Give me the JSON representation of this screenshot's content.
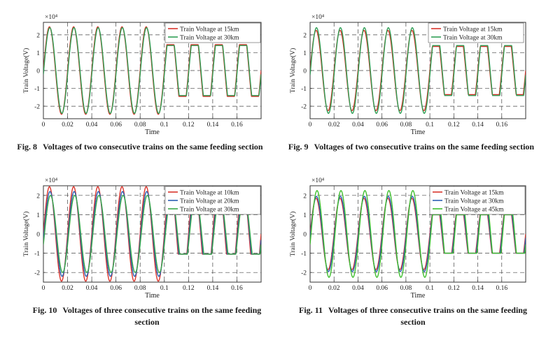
{
  "chart_data": [
    {
      "type": "line",
      "id": "fig8",
      "caption_number": "Fig. 8",
      "caption_text": "Voltages of two consecutive trains on the same feeding section",
      "xlabel": "Time",
      "ylabel": "Train Voltage(V)",
      "exponent_label": "×10⁴",
      "xlim": [
        0,
        0.18
      ],
      "ylim": [
        -2.7,
        2.7
      ],
      "xticks": [
        0,
        0.02,
        0.04,
        0.06,
        0.08,
        0.1,
        0.12,
        0.14,
        0.16
      ],
      "xtick_labels": [
        "0",
        "0.02",
        "0.04",
        "0.06",
        "0.08",
        "0.1",
        "0.12",
        "0.14",
        "0.16"
      ],
      "yticks": [
        -2,
        -1,
        0,
        1,
        2
      ],
      "ytick_labels": [
        "-2",
        "-1",
        "0",
        "1",
        "2"
      ],
      "frequency_hz": 50,
      "clip_start": 0.1,
      "legend_position": "top-right",
      "series": [
        {
          "name": "Train Voltage at 15km",
          "color": "#d9342b",
          "amplitude": 2.45,
          "phase_deg": 0,
          "clip_level": 1.45
        },
        {
          "name": "Train Voltage at 30km",
          "color": "#2f9e55",
          "amplitude": 2.4,
          "phase_deg": -5,
          "clip_level": 1.4
        }
      ]
    },
    {
      "type": "line",
      "id": "fig9",
      "caption_number": "Fig. 9",
      "caption_text": "Voltages of two consecutive trains on the same feeding section",
      "xlabel": "Time",
      "ylabel": "Train Voltage(V)",
      "exponent_label": "×10⁴",
      "xlim": [
        0,
        0.18
      ],
      "ylim": [
        -2.7,
        2.7
      ],
      "xticks": [
        0,
        0.02,
        0.04,
        0.06,
        0.08,
        0.1,
        0.12,
        0.14,
        0.16
      ],
      "xtick_labels": [
        "0",
        "0.02",
        "0.04",
        "0.06",
        "0.08",
        "0.1",
        "0.12",
        "0.14",
        "0.16"
      ],
      "yticks": [
        -2,
        -1,
        0,
        1,
        2
      ],
      "ytick_labels": [
        "-2",
        "-1",
        "0",
        "1",
        "2"
      ],
      "frequency_hz": 50,
      "clip_start": 0.1,
      "legend_position": "top-right",
      "series": [
        {
          "name": "Train Voltage at 15km",
          "color": "#d9342b",
          "amplitude": 2.25,
          "phase_deg": 0,
          "clip_level": 1.35
        },
        {
          "name": "Train Voltage at 30km",
          "color": "#2f9e55",
          "amplitude": 2.4,
          "phase_deg": -6,
          "clip_level": 1.4
        }
      ]
    },
    {
      "type": "line",
      "id": "fig10",
      "caption_number": "Fig. 10",
      "caption_text": "Voltages of three consecutive trains on the same feeding section",
      "xlabel": "Time",
      "ylabel": "Train Voltage(V)",
      "exponent_label": "×10⁴",
      "xlim": [
        0,
        0.18
      ],
      "ylim": [
        -2.5,
        2.5
      ],
      "xticks": [
        0,
        0.02,
        0.04,
        0.06,
        0.08,
        0.1,
        0.12,
        0.14,
        0.16
      ],
      "xtick_labels": [
        "0",
        "0.02",
        "0.04",
        "0.06",
        "0.08",
        "0.1",
        "0.12",
        "0.14",
        "0.16"
      ],
      "yticks": [
        -2,
        -1,
        0,
        1,
        2
      ],
      "ytick_labels": [
        "-2",
        "-1",
        "0",
        "1",
        "2"
      ],
      "frequency_hz": 50,
      "clip_start": 0.1,
      "legend_position": "top-right",
      "series": [
        {
          "name": "Train Voltage at 10km",
          "color": "#d9342b",
          "amplitude": 2.45,
          "phase_deg": 0,
          "clip_level": 1.05
        },
        {
          "name": "Train Voltage at 20km",
          "color": "#2b5fb3",
          "amplitude": 2.2,
          "phase_deg": -8,
          "clip_level": 1.05
        },
        {
          "name": "Train Voltage at 30km",
          "color": "#3aa84a",
          "amplitude": 2.0,
          "phase_deg": -16,
          "clip_level": 1.05
        }
      ]
    },
    {
      "type": "line",
      "id": "fig11",
      "caption_number": "Fig. 11",
      "caption_text": "Voltages of three consecutive trains on the same feeding section",
      "xlabel": "Time",
      "ylabel": "Train Voltage(V)",
      "exponent_label": "×10⁴",
      "xlim": [
        0,
        0.18
      ],
      "ylim": [
        -2.5,
        2.5
      ],
      "xticks": [
        0,
        0.02,
        0.04,
        0.06,
        0.08,
        0.1,
        0.12,
        0.14,
        0.16
      ],
      "xtick_labels": [
        "0",
        "0.02",
        "0.04",
        "0.06",
        "0.08",
        "0.1",
        "0.12",
        "0.14",
        "0.16"
      ],
      "yticks": [
        -2,
        -1,
        0,
        1,
        2
      ],
      "ytick_labels": [
        "-2",
        "-1",
        "0",
        "1",
        "2"
      ],
      "frequency_hz": 50,
      "clip_start": 0.1,
      "legend_position": "top-right",
      "series": [
        {
          "name": "Train Voltage at 15km",
          "color": "#d9342b",
          "amplitude": 1.85,
          "phase_deg": 0,
          "clip_level": 1.0
        },
        {
          "name": "Train Voltage at 30km",
          "color": "#2b5fb3",
          "amplitude": 1.95,
          "phase_deg": -6,
          "clip_level": 1.0
        },
        {
          "name": "Train Voltage at 45km",
          "color": "#3fbf2f",
          "amplitude": 2.25,
          "phase_deg": -14,
          "clip_level": 1.0
        }
      ]
    }
  ]
}
